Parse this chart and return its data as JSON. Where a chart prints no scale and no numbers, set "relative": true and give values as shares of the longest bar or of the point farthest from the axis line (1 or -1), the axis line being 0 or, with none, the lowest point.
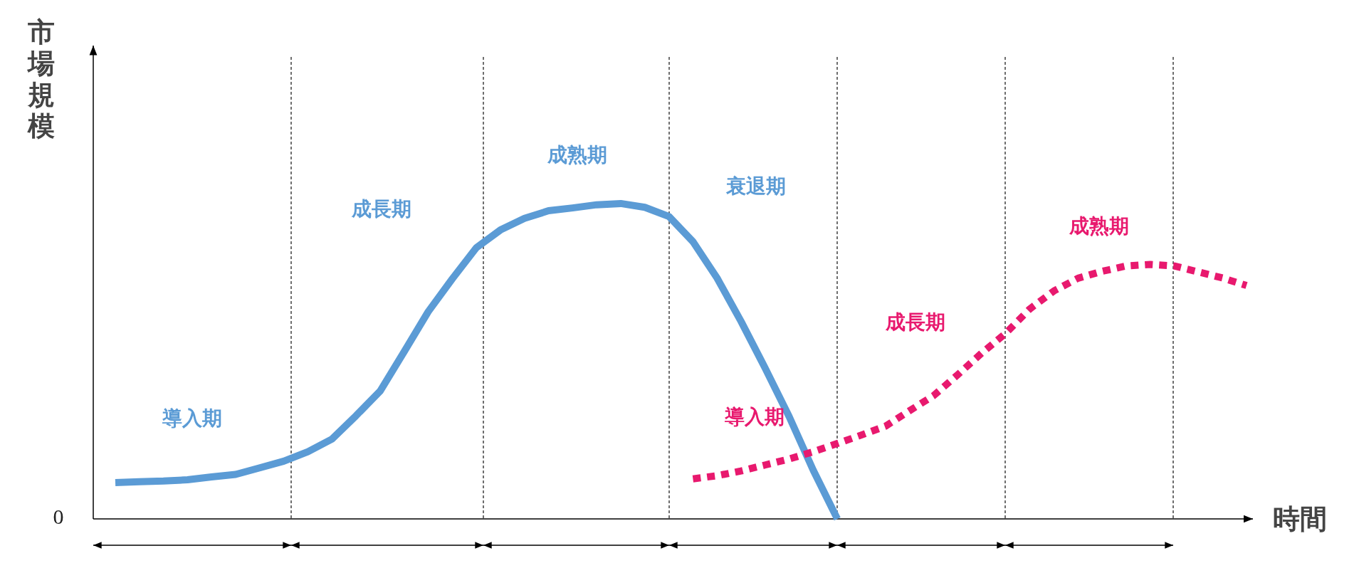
{
  "chart_data": {
    "type": "line",
    "relative": true,
    "grid": "x",
    "xlabel": "時間",
    "ylabel": "市場規模",
    "categories": [
      null,
      null,
      null,
      null,
      null,
      null,
      null,
      null,
      null,
      null,
      null,
      null,
      null,
      null,
      null,
      null,
      null,
      null,
      null,
      null,
      null,
      null,
      null,
      null,
      null,
      null,
      null,
      null,
      null,
      null,
      null,
      null,
      null,
      null,
      null,
      null,
      null,
      null,
      null,
      null,
      null,
      null,
      null,
      null,
      null,
      null,
      null,
      null
    ],
    "series": [
      {
        "color": "#5b9bd5",
        "line_style": "solid",
        "values": [
          0.115,
          0.118,
          0.12,
          0.124,
          0.133,
          0.141,
          0.162,
          0.183,
          0.213,
          0.253,
          0.327,
          0.405,
          0.53,
          0.657,
          0.761,
          0.86,
          0.916,
          0.953,
          0.977,
          0.986,
          0.996,
          1,
          0.988,
          0.959,
          0.879,
          0.764,
          0.626,
          0.478,
          0.324,
          0.154,
          0,
          null,
          null,
          null,
          null,
          null,
          null,
          null,
          null,
          null,
          null,
          null,
          null,
          null,
          null,
          null,
          null,
          null
        ]
      },
      {
        "color": "#e8196e",
        "line_style": "dashed",
        "values": [
          null,
          null,
          null,
          null,
          null,
          null,
          null,
          null,
          null,
          null,
          null,
          null,
          null,
          null,
          null,
          null,
          null,
          null,
          null,
          null,
          null,
          null,
          null,
          null,
          0.127,
          0.137,
          0.152,
          0.171,
          0.19,
          0.213,
          0.239,
          0.266,
          0.294,
          0.343,
          0.391,
          0.457,
          0.526,
          0.589,
          0.666,
          0.723,
          0.763,
          0.785,
          0.802,
          0.807,
          0.802,
          0.783,
          0.764,
          0.74
        ]
      }
    ],
    "annotations": [
      "0",
      "導入期",
      "成長期",
      "成熟期",
      "衰退期",
      "導入期",
      "成長期",
      "成熟期"
    ]
  }
}
